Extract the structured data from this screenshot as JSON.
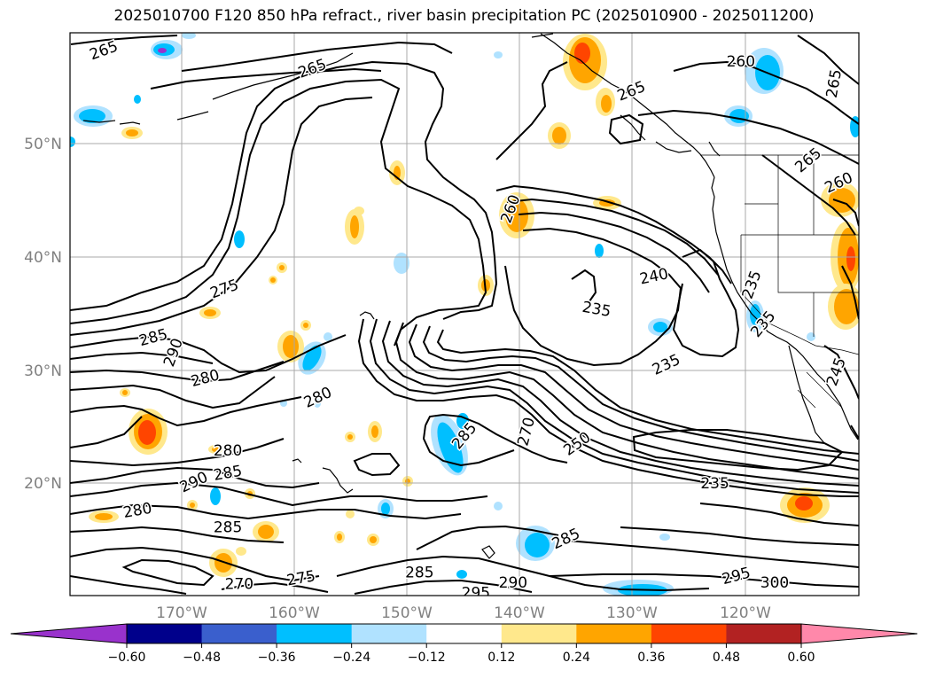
{
  "title": "2025010700 F120 850 hPa refract., river basin precipitation PC (2025010900 - 2025011200)",
  "map": {
    "lat_labels": [
      "50°N",
      "40°N",
      "30°N",
      "20°N"
    ],
    "lon_labels": [
      "170°W",
      "160°W",
      "150°W",
      "140°W",
      "130°W",
      "120°W"
    ],
    "contour_labels": [
      {
        "text": "265",
        "lon": -177.0,
        "lat": 58.2,
        "rot": -20
      },
      {
        "text": "265",
        "lon": -158.5,
        "lat": 56.6,
        "rot": -20
      },
      {
        "text": "265",
        "lon": -130.2,
        "lat": 54.6,
        "rot": -22
      },
      {
        "text": "260",
        "lon": -120.5,
        "lat": 57.2,
        "rot": 0
      },
      {
        "text": "265",
        "lon": -112.2,
        "lat": 55.3,
        "rot": -80
      },
      {
        "text": "265",
        "lon": -114.5,
        "lat": 48.5,
        "rot": -40
      },
      {
        "text": "260",
        "lon": -111.8,
        "lat": 46.5,
        "rot": -25
      },
      {
        "text": "260",
        "lon": -140.9,
        "lat": 44.2,
        "rot": -70
      },
      {
        "text": "240",
        "lon": -128.2,
        "lat": 38.2,
        "rot": -12
      },
      {
        "text": "235",
        "lon": -133.3,
        "lat": 35.3,
        "rot": 10
      },
      {
        "text": "235",
        "lon": -119.5,
        "lat": 37.5,
        "rot": -70
      },
      {
        "text": "235",
        "lon": -118.5,
        "lat": 34.0,
        "rot": -50
      },
      {
        "text": "235",
        "lon": -127.1,
        "lat": 30.4,
        "rot": -25
      },
      {
        "text": "245",
        "lon": -112.0,
        "lat": 29.8,
        "rot": -70
      },
      {
        "text": "275",
        "lon": -166.3,
        "lat": 37.1,
        "rot": -20
      },
      {
        "text": "285",
        "lon": -172.6,
        "lat": 32.8,
        "rot": -15
      },
      {
        "text": "290",
        "lon": -170.8,
        "lat": 31.5,
        "rot": -70
      },
      {
        "text": "280",
        "lon": -168.0,
        "lat": 29.2,
        "rot": -15
      },
      {
        "text": "280",
        "lon": -158.0,
        "lat": 27.5,
        "rot": -25
      },
      {
        "text": "285",
        "lon": -145.0,
        "lat": 24.1,
        "rot": -50
      },
      {
        "text": "270",
        "lon": -139.5,
        "lat": 24.5,
        "rot": -75
      },
      {
        "text": "250",
        "lon": -135.0,
        "lat": 23.4,
        "rot": -35
      },
      {
        "text": "280",
        "lon": -166.0,
        "lat": 22.8,
        "rot": 0
      },
      {
        "text": "285",
        "lon": -166.0,
        "lat": 20.8,
        "rot": -10
      },
      {
        "text": "290",
        "lon": -169.0,
        "lat": 20.0,
        "rot": -25
      },
      {
        "text": "280",
        "lon": -174.0,
        "lat": 17.5,
        "rot": -10
      },
      {
        "text": "285",
        "lon": -166.0,
        "lat": 16.0,
        "rot": 0
      },
      {
        "text": "235",
        "lon": -122.8,
        "lat": 19.9,
        "rot": 0
      },
      {
        "text": "285",
        "lon": -136.0,
        "lat": 15.0,
        "rot": -25
      },
      {
        "text": "270",
        "lon": -165.0,
        "lat": 11.0,
        "rot": 0
      },
      {
        "text": "275",
        "lon": -159.5,
        "lat": 11.5,
        "rot": -10
      },
      {
        "text": "285",
        "lon": -149.0,
        "lat": 12.0,
        "rot": 0
      },
      {
        "text": "295",
        "lon": -144.0,
        "lat": 10.2,
        "rot": 0
      },
      {
        "text": "290",
        "lon": -140.7,
        "lat": 11.1,
        "rot": 0
      },
      {
        "text": "295",
        "lon": -120.9,
        "lat": 11.7,
        "rot": -15
      },
      {
        "text": "300",
        "lon": -117.5,
        "lat": 11.1,
        "rot": 0
      }
    ]
  },
  "colorbar": {
    "tick_labels": [
      "−0.60",
      "−0.48",
      "−0.36",
      "−0.24",
      "−0.12",
      "0.12",
      "0.24",
      "0.36",
      "0.48",
      "0.60"
    ],
    "colors": [
      "#9932CC",
      "#00008B",
      "#3A5FCD",
      "#00BFFF",
      "#B0E2FF",
      "#FFFFFF",
      "#FFE88C",
      "#FFA500",
      "#FF4500",
      "#B22222",
      "#FF88AA"
    ]
  }
}
